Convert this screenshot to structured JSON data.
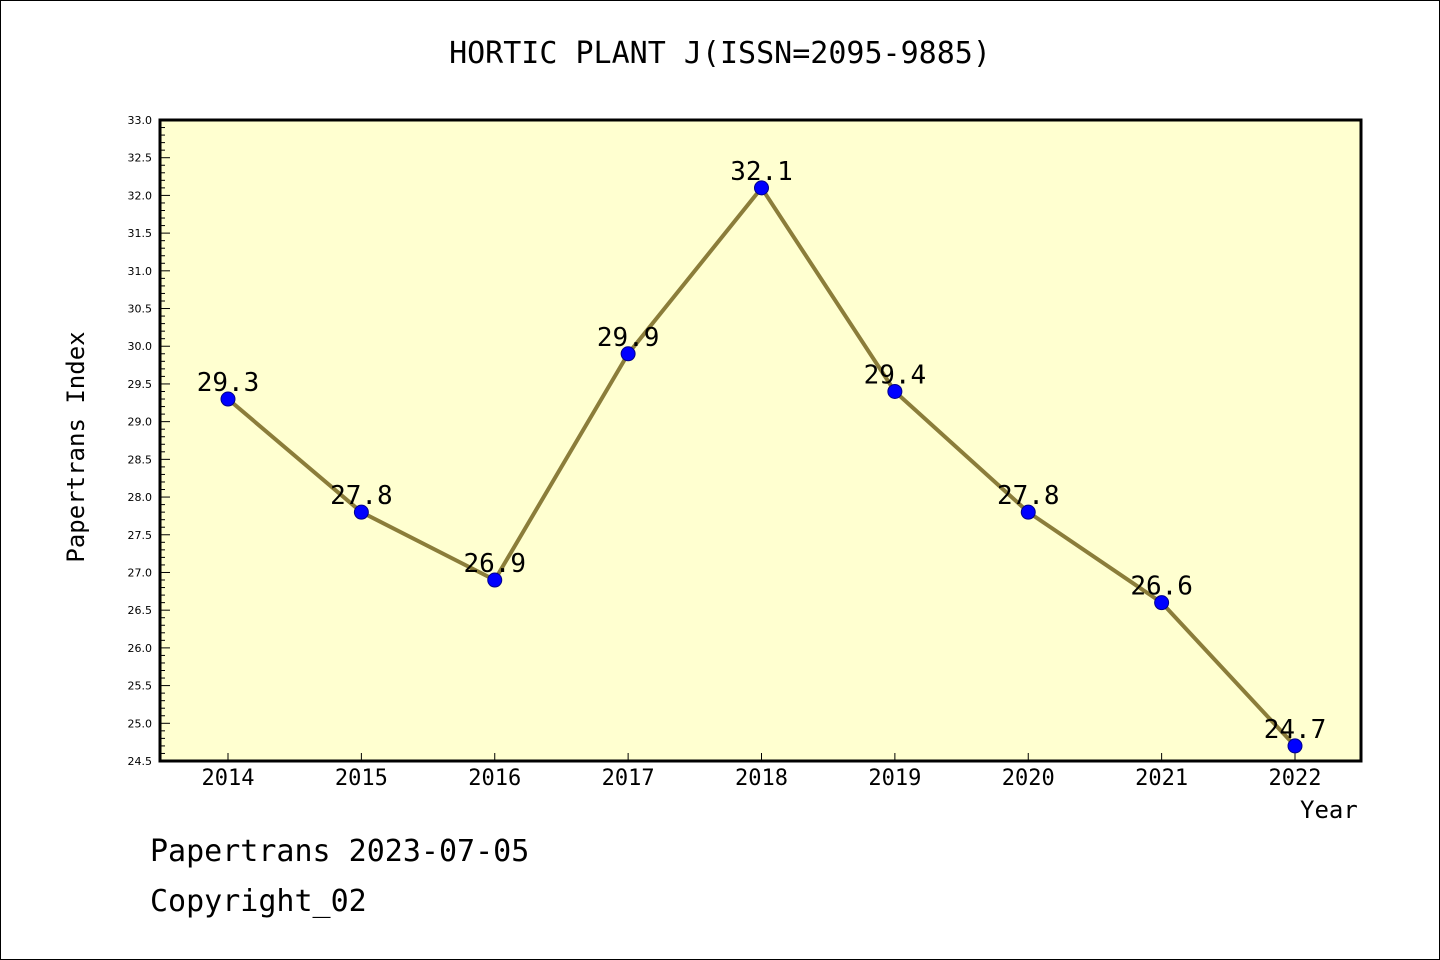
{
  "chart_data": {
    "type": "line",
    "title": "HORTIC PLANT J(ISSN=2095-9885)",
    "xlabel": "Year",
    "ylabel": "Papertrans Index",
    "categories": [
      "2014",
      "2015",
      "2016",
      "2017",
      "2018",
      "2019",
      "2020",
      "2021",
      "2022"
    ],
    "series": [
      {
        "values": [
          29.3,
          27.8,
          26.9,
          29.9,
          32.1,
          29.4,
          27.8,
          26.6,
          24.7
        ],
        "labels": [
          "29.3",
          "27.8",
          "26.9",
          "29.9",
          "32.1",
          "29.4",
          "27.8",
          "26.6",
          "24.7"
        ]
      }
    ],
    "ylim": [
      24.5,
      33.0
    ],
    "yticks": [
      "24.5",
      "25.0",
      "25.5",
      "26.0",
      "26.5",
      "27.0",
      "27.5",
      "28.0",
      "28.5",
      "29.0",
      "29.5",
      "30.0",
      "30.5",
      "31.0",
      "31.5",
      "32.0",
      "32.5",
      "33.0"
    ],
    "grid": false,
    "colors": {
      "plot_background": "#ffffd0",
      "line": "#8b7d3a",
      "marker": "#0000ff"
    }
  },
  "footer": {
    "line1": "Papertrans 2023-07-05",
    "line2": "Copyright_02"
  }
}
